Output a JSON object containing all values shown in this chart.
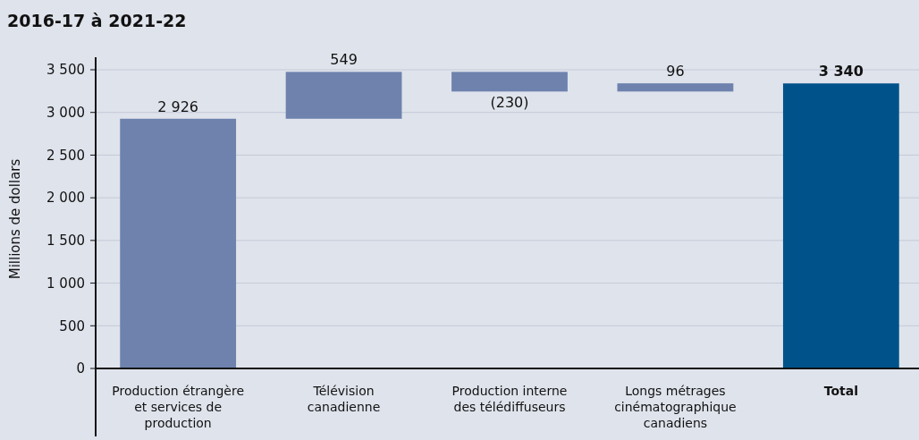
{
  "chart_data": {
    "type": "bar",
    "title": "2016-17 à 2021-22",
    "ylabel": "Millions de dollars",
    "categories": [
      "Production étrangère et services de production",
      "Télévision canadienne",
      "Production interne des télédiffuseurs",
      "Longs métrages cinématographique canadiens",
      "Total"
    ],
    "values": [
      2926,
      549,
      -230,
      96,
      3340
    ],
    "base": [
      0,
      2926,
      3475,
      3245,
      0
    ],
    "colors": [
      "#6e82ad",
      "#6e82ad",
      "#6e82ad",
      "#6e82ad",
      "#00538a"
    ],
    "value_labels": [
      "2 926",
      "549",
      "(230)",
      "96",
      "3 340"
    ],
    "ylim": [
      0,
      3500
    ],
    "yticks": [
      0,
      {
        "value": 500,
        "label": "500"
      },
      {
        "value": 1000,
        "label": "1 000"
      },
      {
        "value": 1500,
        "label": "1 500"
      },
      {
        "value": 2000,
        "label": "2 000"
      },
      {
        "value": 2500,
        "label": "2 500"
      },
      {
        "value": 3000,
        "label": "3 000"
      },
      {
        "value": 3500,
        "label": "3 500"
      }
    ],
    "grid": "y"
  }
}
